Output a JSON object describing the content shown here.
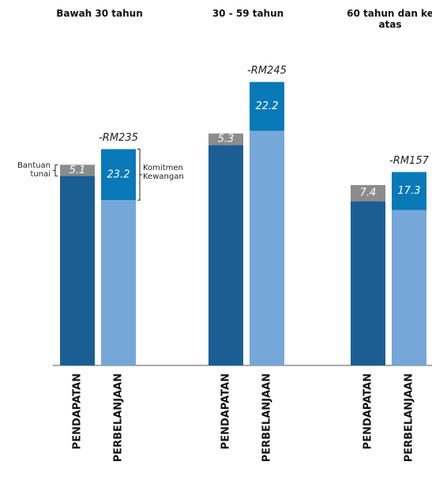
{
  "chart_data": {
    "type": "grouped_stacked_bar",
    "ylim": [
      0,
      130
    ],
    "colors": {
      "income_base": "#1b5e94",
      "income_top": "#8c8c8c",
      "spend_base": "#75a8d8",
      "spend_top": "#0a79b8"
    },
    "bar_labels": [
      "PENDAPATAN",
      "PERBELANJAAN"
    ],
    "segment_labels": {
      "income_top": "Bantuan tunai",
      "spend_top": "Komitmen Kewangan"
    },
    "groups": [
      {
        "title": "Bawah 30 tahun",
        "annotation": "-RM235",
        "income": {
          "base": 86,
          "top": 5.1
        },
        "spend": {
          "base": 75,
          "top": 23.2
        }
      },
      {
        "title": "30 - 59 tahun",
        "annotation": "-RM245",
        "income": {
          "base": 100,
          "top": 5.3
        },
        "spend": {
          "base": 106.5,
          "top": 22.2
        }
      },
      {
        "title": "60 tahun dan ke atas",
        "annotation": "-RM157",
        "income": {
          "base": 74.5,
          "top": 7.4
        },
        "spend": {
          "base": 70.5,
          "top": 17.3
        }
      }
    ]
  }
}
